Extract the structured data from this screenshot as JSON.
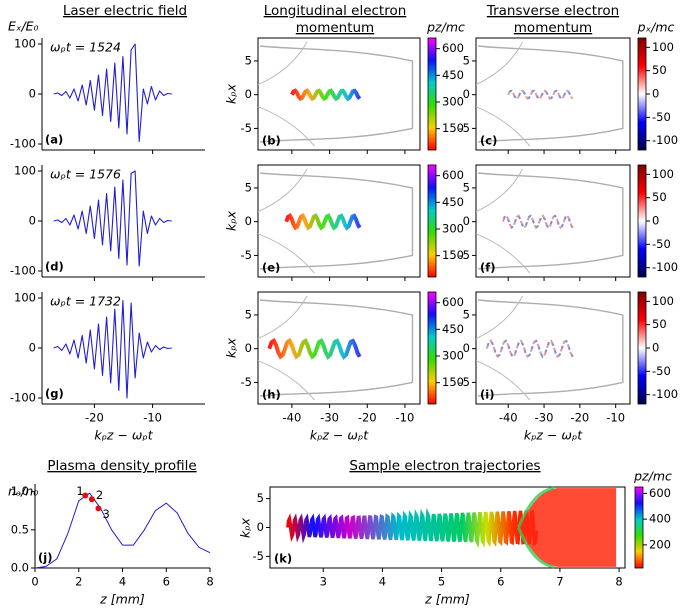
{
  "chart_data": [
    {
      "type": "line",
      "title": "Laser electric field",
      "ylabel": "Eₓ/E₀",
      "annotation": "ωₚt = 1524",
      "panel": "(a)",
      "color": "#1f1fd6",
      "x": [
        -27,
        -26.3,
        -25.6,
        -24.9,
        -24.2,
        -23.5,
        -22.8,
        -22.1,
        -21.4,
        -20.7,
        -20,
        -19.3,
        -18.6,
        -17.9,
        -17.2,
        -16.5,
        -15.8,
        -15.1,
        -14.4,
        -13.7,
        -13,
        -12.3,
        -11.6,
        -10.9,
        -10.2,
        -9.5,
        -8.8,
        -8.1,
        -7.4,
        -6.7
      ],
      "values": [
        0,
        2,
        -3,
        5,
        -8,
        10,
        -14,
        18,
        -22,
        27,
        -32,
        38,
        -43,
        50,
        -55,
        62,
        -68,
        75,
        -80,
        88,
        100,
        -95,
        10,
        -20,
        15,
        -12,
        6,
        -3,
        1,
        0
      ],
      "xlim": [
        -29,
        -1
      ],
      "ylim": [
        -112,
        112
      ],
      "xticks": [
        -20,
        -10
      ],
      "yticks": [
        -100,
        0,
        100
      ]
    },
    {
      "type": "line",
      "annotation": "ωₚt = 1576",
      "panel": "(d)",
      "color": "#1f1fd6",
      "x": [
        -27,
        -26.3,
        -25.6,
        -24.9,
        -24.2,
        -23.5,
        -22.8,
        -22.1,
        -21.4,
        -20.7,
        -20,
        -19.3,
        -18.6,
        -17.9,
        -17.2,
        -16.5,
        -15.8,
        -15.1,
        -14.4,
        -13.7,
        -13,
        -12.3,
        -11.6,
        -10.9,
        -10.2,
        -9.5,
        -8.8,
        -8.1,
        -7.4,
        -6.7
      ],
      "values": [
        0,
        2,
        -3,
        5,
        -8,
        12,
        -16,
        20,
        -25,
        30,
        -35,
        42,
        -48,
        55,
        -60,
        68,
        -75,
        82,
        -88,
        95,
        100,
        -90,
        20,
        -25,
        10,
        -8,
        5,
        -3,
        1,
        0
      ],
      "xlim": [
        -29,
        -1
      ],
      "ylim": [
        -112,
        112
      ],
      "xticks": [
        -20,
        -10
      ],
      "yticks": [
        -100,
        0,
        100
      ]
    },
    {
      "type": "line",
      "annotation": "ωₚt = 1732",
      "panel": "(g)",
      "color": "#1f1fd6",
      "xlabel": "kₚz − ωₚt",
      "x": [
        -27,
        -26.3,
        -25.6,
        -24.9,
        -24.2,
        -23.5,
        -22.8,
        -22.1,
        -21.4,
        -20.7,
        -20,
        -19.3,
        -18.6,
        -17.9,
        -17.2,
        -16.5,
        -15.8,
        -15.1,
        -14.4,
        -13.7,
        -13,
        -12.3,
        -11.6,
        -10.9,
        -10.2,
        -9.5,
        -8.8,
        -8.1,
        -7.4,
        -6.7
      ],
      "values": [
        0,
        3,
        -5,
        8,
        -12,
        16,
        -20,
        25,
        -30,
        36,
        -42,
        48,
        -55,
        62,
        -70,
        78,
        -85,
        95,
        -100,
        90,
        -60,
        30,
        -20,
        12,
        -8,
        5,
        -3,
        2,
        -1,
        0
      ],
      "xlim": [
        -29,
        -1
      ],
      "ylim": [
        -112,
        112
      ],
      "xticks": [
        -20,
        -10
      ],
      "yticks": [
        -100,
        0,
        100
      ]
    },
    {
      "type": "image",
      "title": [
        "Longitudinal electron",
        "momentum"
      ],
      "ylabel": "kₚx",
      "panel": "(b)",
      "colormap": "rainbow",
      "xlim": [
        -49,
        -6
      ],
      "ylim": [
        -8.2,
        8.4
      ],
      "xticks": [
        -40,
        -30,
        -20,
        -10
      ],
      "yticks": [
        -5,
        0,
        5
      ],
      "colorbar": {
        "label": "pz/mc",
        "lim": [
          30,
          660
        ],
        "ticks": [
          150,
          300,
          450,
          600
        ]
      }
    },
    {
      "type": "image",
      "ylabel": "kₚx",
      "panel": "(e)",
      "colormap": "rainbow",
      "xlim": [
        -49,
        -6
      ],
      "ylim": [
        -8.2,
        8.4
      ],
      "xticks": [
        -40,
        -30,
        -20,
        -10
      ],
      "yticks": [
        -5,
        0,
        5
      ],
      "colorbar": {
        "lim": [
          30,
          660
        ],
        "ticks": [
          150,
          300,
          450,
          600
        ]
      }
    },
    {
      "type": "image",
      "ylabel": "kₚx",
      "panel": "(h)",
      "colormap": "rainbow",
      "xlabel": "kₚz − ωₚt",
      "xlim": [
        -49,
        -6
      ],
      "ylim": [
        -8.2,
        8.4
      ],
      "xticks": [
        -40,
        -30,
        -20,
        -10
      ],
      "yticks": [
        -5,
        0,
        5
      ],
      "colorbar": {
        "lim": [
          30,
          660
        ],
        "ticks": [
          150,
          300,
          450,
          600
        ]
      }
    },
    {
      "type": "image",
      "title": [
        "Transverse electron",
        "momentum"
      ],
      "panel": "(c)",
      "colormap": "seismic",
      "xlim": [
        -49,
        -6
      ],
      "ylim": [
        -8.2,
        8.4
      ],
      "xticks": [
        -40,
        -30,
        -20,
        -10
      ],
      "yticks": [
        -5,
        0,
        5
      ],
      "colorbar": {
        "label": "pₓ/mc",
        "lim": [
          -120,
          120
        ],
        "ticks": [
          -100,
          -50,
          0,
          50,
          100
        ]
      }
    },
    {
      "type": "image",
      "panel": "(f)",
      "colormap": "seismic",
      "xlim": [
        -49,
        -6
      ],
      "ylim": [
        -8.2,
        8.4
      ],
      "xticks": [
        -40,
        -30,
        -20,
        -10
      ],
      "yticks": [
        -5,
        0,
        5
      ],
      "colorbar": {
        "lim": [
          -120,
          120
        ],
        "ticks": [
          -100,
          -50,
          0,
          50,
          100
        ]
      }
    },
    {
      "type": "image",
      "panel": "(i)",
      "colormap": "seismic",
      "xlabel": "kₚz − ωₚt",
      "xlim": [
        -49,
        -6
      ],
      "ylim": [
        -8.2,
        8.4
      ],
      "xticks": [
        -40,
        -30,
        -20,
        -10
      ],
      "yticks": [
        -5,
        0,
        5
      ],
      "colorbar": {
        "lim": [
          -120,
          120
        ],
        "ticks": [
          -100,
          -50,
          0,
          50,
          100
        ]
      }
    },
    {
      "type": "line",
      "title": "Plasma density profile",
      "ylabel": "nₑ/n₀",
      "xlabel": "z [mm]",
      "panel": "(j)",
      "color": "#1f1fd6",
      "x": [
        0,
        0.5,
        1,
        1.5,
        2,
        2.5,
        3,
        3.5,
        4,
        4.5,
        5,
        5.5,
        6,
        6.5,
        7,
        7.5,
        8
      ],
      "values": [
        0,
        0.02,
        0.12,
        0.45,
        0.88,
        0.98,
        0.78,
        0.5,
        0.3,
        0.3,
        0.5,
        0.75,
        0.85,
        0.72,
        0.45,
        0.27,
        0.2
      ],
      "xlim": [
        0,
        8
      ],
      "ylim": [
        0,
        1.1
      ],
      "xticks": [
        0,
        2,
        4,
        6,
        8
      ],
      "yticks": [
        {
          "value": 0,
          "label": "0.0"
        },
        {
          "value": 0.5,
          "label": "0.5"
        },
        {
          "value": 1,
          "label": "1.0"
        }
      ],
      "markers": {
        "x": [
          2.3,
          2.6,
          2.9
        ],
        "values": [
          0.95,
          0.9,
          0.78
        ],
        "labels": [
          "1",
          "2",
          "3"
        ],
        "color": "#e01010"
      }
    },
    {
      "type": "image",
      "title": "Sample electron trajectories",
      "ylabel": "kₚx",
      "xlabel": "z [mm]",
      "panel": "(k)",
      "colormap": "rainbow",
      "xlim": [
        2.1,
        8.1
      ],
      "ylim": [
        -7,
        7
      ],
      "xticks": [
        3,
        4,
        5,
        6,
        7,
        8
      ],
      "yticks": [
        -5,
        0,
        5
      ],
      "colorbar": {
        "label": "pz/mc",
        "lim": [
          20,
          650
        ],
        "ticks": [
          200,
          400,
          600
        ]
      }
    }
  ]
}
